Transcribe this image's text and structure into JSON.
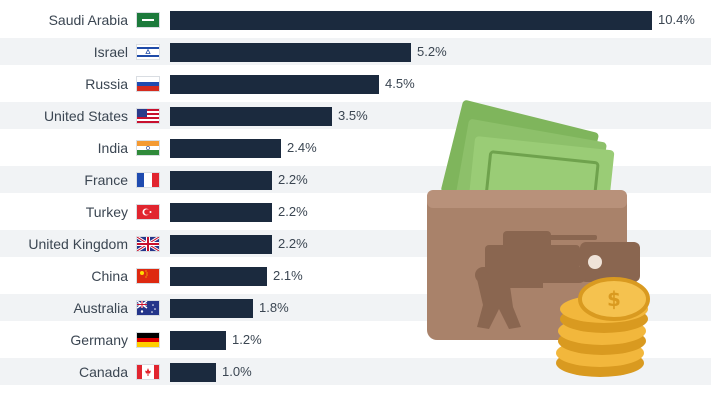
{
  "chart_data": {
    "type": "bar",
    "orientation": "horizontal",
    "categories": [
      "Saudi Arabia",
      "Israel",
      "Russia",
      "United States",
      "India",
      "France",
      "Turkey",
      "United Kingdom",
      "China",
      "Australia",
      "Germany",
      "Canada"
    ],
    "values": [
      10.4,
      5.2,
      4.5,
      3.5,
      2.4,
      2.2,
      2.2,
      2.2,
      2.1,
      1.8,
      1.2,
      1.0
    ],
    "value_labels": [
      "10.4%",
      "5.2%",
      "4.5%",
      "3.5%",
      "2.4%",
      "2.2%",
      "2.2%",
      "2.2%",
      "2.1%",
      "1.8%",
      "1.2%",
      "1.0%"
    ],
    "flags": [
      "saudi-arabia-flag-icon",
      "israel-flag-icon",
      "russia-flag-icon",
      "united-states-flag-icon",
      "india-flag-icon",
      "france-flag-icon",
      "turkey-flag-icon",
      "united-kingdom-flag-icon",
      "china-flag-icon",
      "australia-flag-icon",
      "germany-flag-icon",
      "canada-flag-icon"
    ],
    "title": "",
    "xlabel": "",
    "ylabel": "",
    "xlim": [
      0,
      10.4
    ],
    "grid": false,
    "colors": {
      "bar": "#1b2a3e",
      "stripe": "#f1f3f5",
      "text": "#3b4652"
    }
  },
  "illustration": {
    "name": "wallet-with-banknotes-soldier-tank-and-coins",
    "colors": {
      "wallet": "#a9826a",
      "wallet_dark": "#8a6650",
      "money": "#8dc06a",
      "coin": "#f2b73c"
    }
  }
}
